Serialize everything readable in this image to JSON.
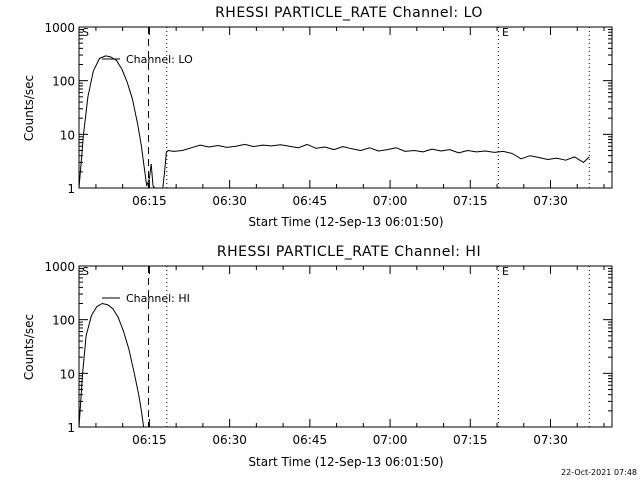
{
  "footer": {
    "timestamp": "22-Oct-2021 07:48"
  },
  "markers": {
    "start_letter": "S",
    "end_letter": "E"
  },
  "chart_data": [
    {
      "type": "line",
      "title": "RHESSI PARTICLE_RATE Channel: LO",
      "xlabel": "Start Time (12-Sep-13 06:01:50)",
      "ylabel": "Counts/sec",
      "y_scale": "log",
      "ylim": [
        1,
        1000
      ],
      "xlim": [
        "06:01:50",
        "07:41:30"
      ],
      "grid": false,
      "legend_position": "top-left",
      "x_ticks": [
        "06:15",
        "06:30",
        "06:45",
        "07:00",
        "07:15",
        "07:30"
      ],
      "y_ticks": [
        "1",
        "10",
        "100",
        "1000"
      ],
      "vertical_lines": [
        {
          "time": "06:14:50",
          "style": "dashed"
        },
        {
          "time": "06:18:15",
          "style": "dotted"
        },
        {
          "time": "07:20:15",
          "style": "dotted"
        },
        {
          "time": "07:37:15",
          "style": "dotted"
        }
      ],
      "series": [
        {
          "name": "Channel: LO",
          "x": [
            "06:01:50",
            "06:02:40",
            "06:03:30",
            "06:04:30",
            "06:05:40",
            "06:06:50",
            "06:07:40",
            "06:08:50",
            "06:09:50",
            "06:10:50",
            "06:11:50",
            "06:12:50",
            "06:13:30",
            "06:14:00",
            "06:14:30",
            "06:15:00",
            "06:15:20"
          ],
          "y": [
            1,
            10,
            50,
            150,
            260,
            290,
            280,
            240,
            165,
            95,
            45,
            15,
            6,
            2.5,
            1.1,
            1.5,
            2.8
          ]
        },
        {
          "name": "Channel: LO",
          "x": [
            "06:15:20",
            "06:15:40",
            "06:16:00",
            "06:16:20",
            "06:16:50",
            "06:17:30",
            "06:17:50",
            "06:18:10",
            "06:18:30",
            "06:19:30",
            "06:21:10",
            "06:22:50",
            "06:24:30",
            "06:26:10",
            "06:27:50",
            "06:29:30",
            "06:31:10",
            "06:32:50",
            "06:34:30",
            "06:36:10",
            "06:37:50",
            "06:39:30",
            "06:41:10",
            "06:42:50",
            "06:44:30",
            "06:46:10",
            "06:47:50",
            "06:49:30",
            "06:51:10",
            "06:52:50",
            "06:54:30",
            "06:56:10",
            "06:57:50",
            "06:59:30",
            "07:01:10",
            "07:02:50",
            "07:04:30",
            "07:06:10",
            "07:07:50",
            "07:09:30",
            "07:11:10",
            "07:12:50",
            "07:14:30",
            "07:16:10",
            "07:17:50",
            "07:19:30",
            "07:21:10",
            "07:22:50",
            "07:24:30",
            "07:26:10",
            "07:27:50",
            "07:29:30",
            "07:31:10",
            "07:32:50",
            "07:34:30",
            "07:36:10",
            "07:37:15"
          ],
          "y": [
            2.8,
            1.1,
            1.0,
            1.0,
            1.0,
            1.0,
            2.0,
            4.6,
            5.0,
            4.8,
            5.0,
            5.6,
            6.3,
            5.8,
            6.2,
            5.7,
            6.0,
            6.5,
            5.9,
            6.3,
            6.1,
            6.4,
            6.0,
            5.6,
            6.5,
            5.5,
            5.8,
            5.2,
            5.9,
            5.4,
            5.0,
            5.6,
            4.9,
            5.2,
            5.6,
            4.8,
            5.0,
            4.7,
            5.3,
            4.9,
            5.2,
            4.5,
            5.0,
            4.7,
            4.9,
            4.6,
            4.8,
            4.4,
            3.5,
            4.0,
            3.7,
            3.4,
            3.6,
            3.3,
            3.8,
            3.0,
            3.8
          ]
        }
      ]
    },
    {
      "type": "line",
      "title": "RHESSI PARTICLE_RATE Channel: HI",
      "xlabel": "Start Time (12-Sep-13 06:01:50)",
      "ylabel": "Counts/sec",
      "y_scale": "log",
      "ylim": [
        1,
        1000
      ],
      "xlim": [
        "06:01:50",
        "07:41:30"
      ],
      "grid": false,
      "legend_position": "top-left",
      "x_ticks": [
        "06:15",
        "06:30",
        "06:45",
        "07:00",
        "07:15",
        "07:30"
      ],
      "y_ticks": [
        "1",
        "10",
        "100",
        "1000"
      ],
      "vertical_lines": [
        {
          "time": "06:14:50",
          "style": "dashed"
        },
        {
          "time": "06:18:15",
          "style": "dotted"
        },
        {
          "time": "07:20:15",
          "style": "dotted"
        },
        {
          "time": "07:37:15",
          "style": "dotted"
        }
      ],
      "series": [
        {
          "name": "Channel: HI",
          "x": [
            "06:01:50",
            "06:02:30",
            "06:03:10",
            "06:04:10",
            "06:05:10",
            "06:06:10",
            "06:07:10",
            "06:08:10",
            "06:09:10",
            "06:10:10",
            "06:11:10",
            "06:12:10",
            "06:13:00",
            "06:13:30",
            "06:13:55"
          ],
          "y": [
            1,
            10,
            50,
            120,
            175,
            200,
            190,
            160,
            110,
            60,
            28,
            10,
            4,
            2,
            1
          ]
        }
      ]
    }
  ]
}
